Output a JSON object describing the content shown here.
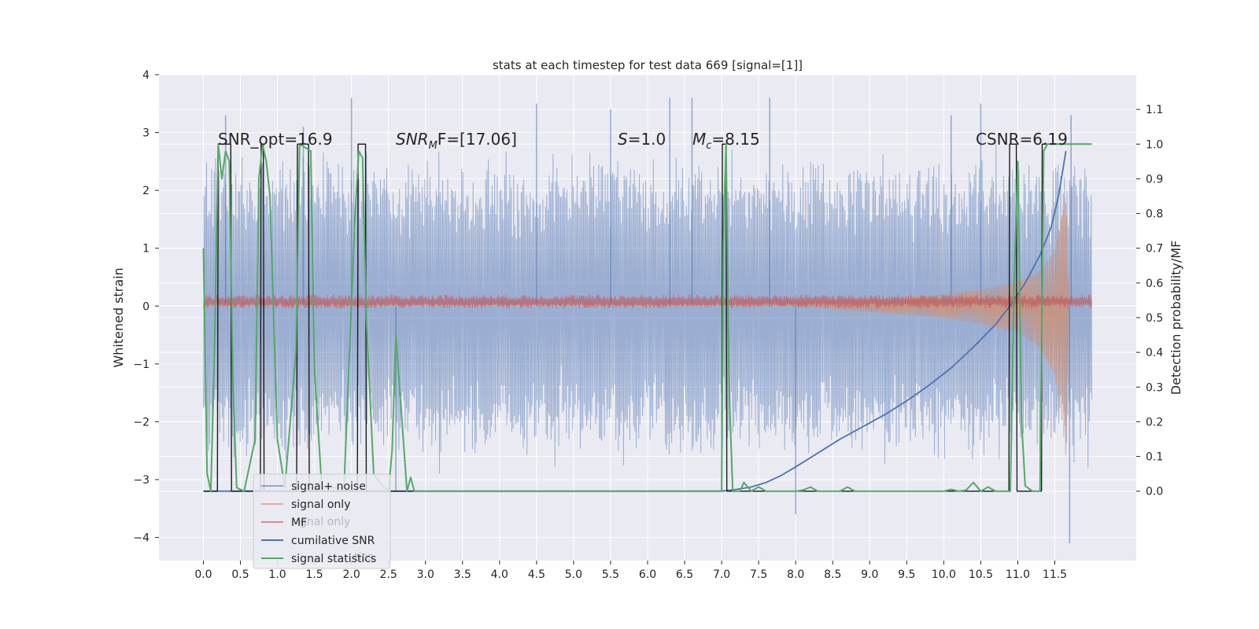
{
  "chart_data": {
    "type": "line",
    "title": "stats at each timestep for test data 669 [signal=[1]]",
    "xlabel": "",
    "ylabel": "Whitened strain",
    "ylabel_right": "Detection probability/MF",
    "xlim": [
      -0.6,
      12.6
    ],
    "ylim": [
      -4.4,
      4.0
    ],
    "ylim_right": [
      -0.2,
      1.2
    ],
    "x_ticks": [
      "0.0",
      "0.5",
      "1.0",
      "1.5",
      "2.0",
      "2.5",
      "3.0",
      "3.5",
      "4.0",
      "4.5",
      "5.0",
      "5.5",
      "6.0",
      "6.5",
      "7.0",
      "7.5",
      "8.0",
      "8.5",
      "9.0",
      "9.5",
      "10.0",
      "10.5",
      "11.0",
      "11.5"
    ],
    "y_ticks": [
      "4",
      "3",
      "2",
      "1",
      "0",
      "−1",
      "−2",
      "−3",
      "−4"
    ],
    "y_right_ticks": [
      "1.1",
      "1.0",
      "0.9",
      "0.8",
      "0.7",
      "0.6",
      "0.5",
      "0.4",
      "0.3",
      "0.2",
      "0.1",
      "0.0"
    ],
    "grid": true,
    "legend_position": "lower-left",
    "colors": {
      "background": "#eaeaf2",
      "noise": "#4c72b0",
      "signal": "#dd8452",
      "mf": "#c44e52",
      "csnr": "#4c72b0",
      "stats": "#55a868",
      "detection": "#1a1a1a"
    },
    "annotations": {
      "snr_opt": "SNR_opt=16.9",
      "snr_mf_a": "SNR",
      "snr_mf_sub": "M",
      "snr_mf_b": "F=[17.06]",
      "s_a": "S",
      "s_b": "=1.0",
      "mc_a": "M",
      "mc_sub": "c",
      "mc_b": "=8.15",
      "csnr": "CSNR=6.19"
    },
    "legend": {
      "noise": "signal+ noise",
      "signal": "signal only",
      "mf": "MF",
      "csnr": "cumilative SNR",
      "stats": "signal statistics",
      "ghost_1": "se",
      "ghost_2": "gnal only",
      "ghost_3": "tics"
    },
    "series": [
      {
        "name": "cumilative SNR",
        "axis": "right",
        "x": [
          0.0,
          7.0,
          7.2,
          7.4,
          7.6,
          7.8,
          8.0,
          8.3,
          8.6,
          8.9,
          9.2,
          9.5,
          9.8,
          10.1,
          10.4,
          10.7,
          10.9,
          11.1,
          11.3,
          11.45,
          11.55,
          11.65
        ],
        "values": [
          0.0,
          0.0,
          0.005,
          0.012,
          0.025,
          0.045,
          0.07,
          0.11,
          0.15,
          0.185,
          0.22,
          0.26,
          0.305,
          0.355,
          0.415,
          0.48,
          0.535,
          0.6,
          0.68,
          0.76,
          0.85,
          0.98
        ]
      },
      {
        "name": "signal statistics",
        "axis": "right",
        "x": [
          0.0,
          0.05,
          0.1,
          0.15,
          0.2,
          0.25,
          0.3,
          0.35,
          0.4,
          0.45,
          0.55,
          0.7,
          0.75,
          0.8,
          0.85,
          0.9,
          0.95,
          1.0,
          1.1,
          1.25,
          1.3,
          1.45,
          1.5,
          1.6,
          1.9,
          2.05,
          2.1,
          2.15,
          2.2,
          2.3,
          2.4,
          2.5,
          2.55,
          2.6,
          2.75,
          2.8,
          2.85,
          2.95,
          4.0,
          7.0,
          7.02,
          7.06,
          7.1,
          7.15,
          7.25,
          7.3,
          7.4,
          7.5,
          7.6,
          8.0,
          8.1,
          8.2,
          8.3,
          8.5,
          8.6,
          8.7,
          8.8,
          10.0,
          10.1,
          10.2,
          10.3,
          10.4,
          10.5,
          10.6,
          10.7,
          10.9,
          10.95,
          11.0,
          11.05,
          11.1,
          11.2,
          11.3,
          11.35,
          11.4,
          11.5,
          11.65,
          11.66,
          12.0
        ],
        "values": [
          0.7,
          0.05,
          0.0,
          0.4,
          1.0,
          0.9,
          0.98,
          0.95,
          0.3,
          0.01,
          0.0,
          0.15,
          0.9,
          1.0,
          0.95,
          0.85,
          0.5,
          0.15,
          0.01,
          0.4,
          1.0,
          0.98,
          0.35,
          0.01,
          0.01,
          0.8,
          0.98,
          0.96,
          0.5,
          0.05,
          0.02,
          0.0,
          0.12,
          0.45,
          0.0,
          0.04,
          0.0,
          0.0,
          0.0,
          0.0,
          0.7,
          1.0,
          0.3,
          0.0,
          0.0,
          0.025,
          0.0,
          0.012,
          0.0,
          0.0,
          0.003,
          0.012,
          0.0,
          0.0,
          0.0,
          0.012,
          0.0,
          0.0,
          0.005,
          0.0,
          0.003,
          0.025,
          0.0,
          0.012,
          0.0,
          0.0,
          0.6,
          0.95,
          0.2,
          0.015,
          0.0,
          0.0,
          0.98,
          1.0,
          1.0,
          1.0,
          1.0,
          1.0
        ]
      },
      {
        "name": "Detection probability",
        "axis": "right",
        "x": [
          0.0,
          0.19,
          0.2,
          0.37,
          0.38,
          0.77,
          0.78,
          0.81,
          0.82,
          1.26,
          1.27,
          1.42,
          1.43,
          2.08,
          2.09,
          2.19,
          2.2,
          7.0,
          7.01,
          7.06,
          7.07,
          10.88,
          10.89,
          10.98,
          10.99,
          11.32,
          11.33,
          12.0
        ],
        "values": [
          0.0,
          0.0,
          1.0,
          1.0,
          0.0,
          0.0,
          1.0,
          1.0,
          0.0,
          0.0,
          1.0,
          1.0,
          0.0,
          0.0,
          1.0,
          1.0,
          0.0,
          0.0,
          1.0,
          1.0,
          0.0,
          0.0,
          1.0,
          1.0,
          0.0,
          0.0,
          1.0,
          1.0
        ]
      },
      {
        "name": "signal+ noise",
        "axis": "left",
        "x_range": [
          0.0,
          12.0
        ],
        "typical_range": [
          -2.6,
          2.6
        ],
        "peaks_x": [
          0.3,
          1.35,
          2.0,
          2.6,
          4.5,
          5.5,
          6.3,
          6.6,
          7.65,
          8.0,
          10.1,
          10.5,
          11.7,
          11.72
        ],
        "peaks_y": [
          3.3,
          3.1,
          3.6,
          -3.2,
          3.5,
          3.4,
          3.6,
          3.6,
          3.6,
          -3.6,
          3.3,
          3.5,
          -4.1,
          3.3
        ]
      },
      {
        "name": "signal only",
        "axis": "left",
        "envelope_x": [
          0.0,
          7.0,
          8.0,
          9.0,
          10.0,
          10.5,
          11.0,
          11.3,
          11.5,
          11.6,
          11.65,
          11.7
        ],
        "envelope_upper": [
          0.05,
          0.05,
          0.08,
          0.12,
          0.2,
          0.28,
          0.42,
          0.6,
          0.95,
          1.6,
          2.0,
          0.0
        ],
        "envelope_lower": [
          0.02,
          0.02,
          0.0,
          -0.1,
          -0.2,
          -0.3,
          -0.45,
          -0.7,
          -1.2,
          -2.0,
          -2.6,
          0.0
        ]
      },
      {
        "name": "MF",
        "axis": "left",
        "x_range": [
          0.0,
          12.0
        ],
        "center": 0.08,
        "amplitude": 0.12
      }
    ]
  }
}
